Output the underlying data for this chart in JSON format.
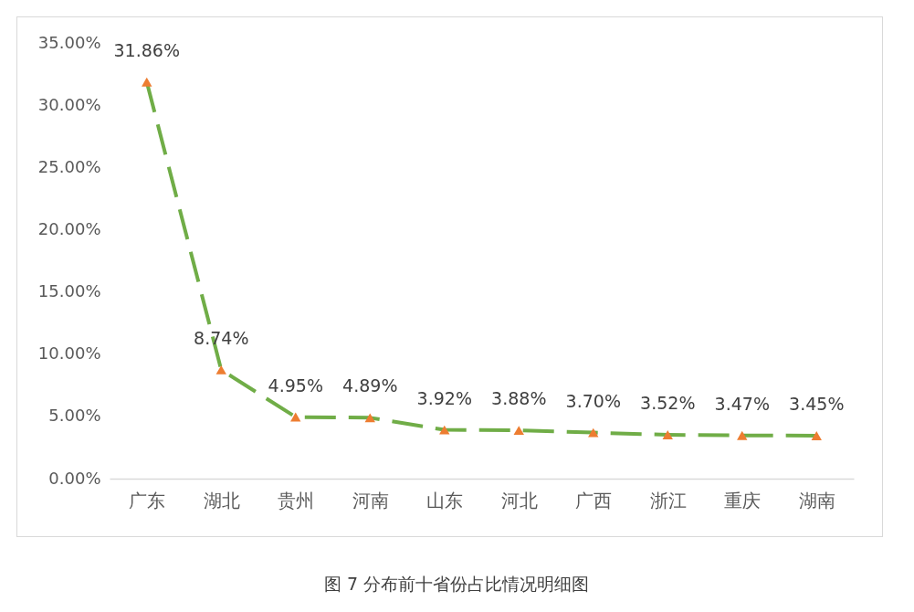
{
  "chart_data": {
    "type": "line",
    "categories": [
      "广东",
      "湖北",
      "贵州",
      "河南",
      "山东",
      "河北",
      "广西",
      "浙江",
      "重庆",
      "湖南"
    ],
    "series": [
      {
        "color": "#70ad47",
        "colors": [
          "#ed7d31",
          "#ed7d31",
          "#ed7d31",
          "#ed7d31",
          "#ed7d31",
          "#ed7d31",
          "#ed7d31",
          "#ed7d31",
          "#ed7d31",
          "#ed7d31"
        ],
        "values": [
          31.86,
          8.74,
          4.95,
          4.89,
          3.92,
          3.88,
          3.7,
          3.52,
          3.47,
          3.45
        ],
        "value_labels": [
          "31.86%",
          "8.74%",
          "4.95%",
          "4.89%",
          "3.92%",
          "3.88%",
          "3.70%",
          "3.52%",
          "3.47%",
          "3.45%"
        ]
      }
    ],
    "ylim": [
      0,
      35
    ],
    "yticks": [
      {
        "value": 0,
        "label": "0.00%"
      },
      {
        "value": 5,
        "label": "5.00%"
      },
      {
        "value": 10,
        "label": "10.00%"
      },
      {
        "value": 15,
        "label": "15.00%"
      },
      {
        "value": 20,
        "label": "20.00%"
      },
      {
        "value": 25,
        "label": "25.00%"
      },
      {
        "value": 30,
        "label": "30.00%"
      },
      {
        "value": 35,
        "label": "35.00%"
      }
    ],
    "grid": false,
    "marker": "triangle",
    "line_style": "dashed",
    "annotations": [
      "图 7 分布前十省份占比情况明细图"
    ]
  }
}
